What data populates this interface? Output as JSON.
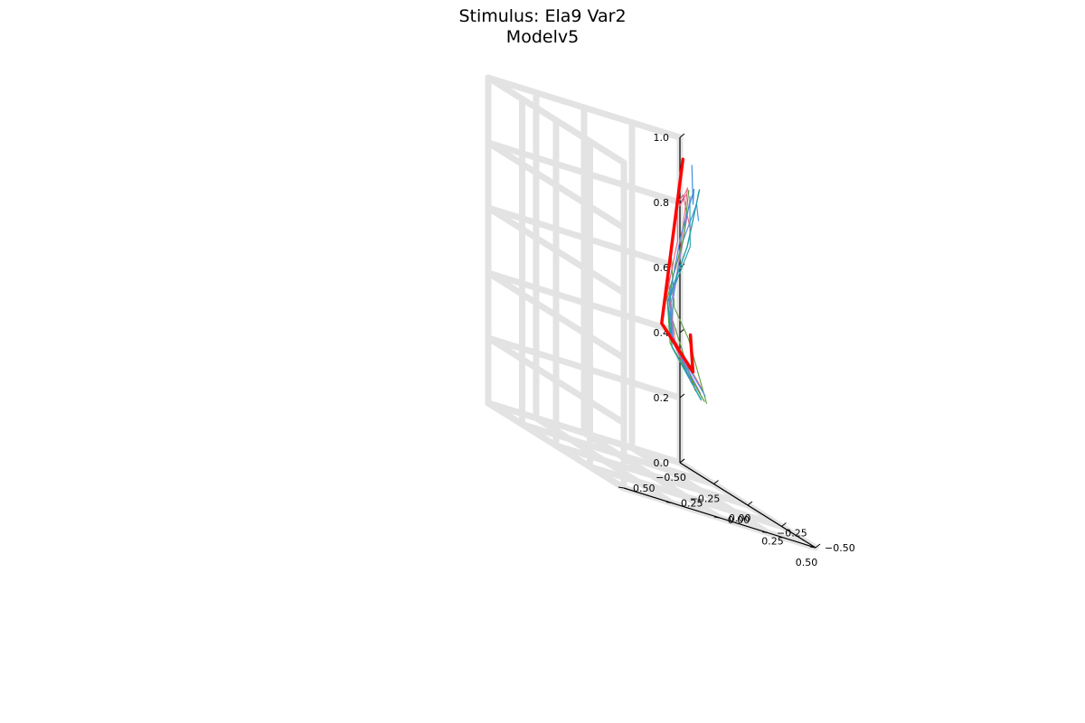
{
  "chart_data": {
    "type": "line3d",
    "title": [
      "Stimulus: Ela9 Var2",
      "Modelv5"
    ],
    "xlim": [
      -0.5,
      0.5
    ],
    "ylim": [
      -0.5,
      0.5
    ],
    "zlim": [
      0.0,
      1.0
    ],
    "x_ticks": [
      -0.5,
      -0.25,
      0.0,
      0.25,
      0.5
    ],
    "y_ticks": [
      -0.5,
      -0.25,
      0.0,
      0.25,
      0.5
    ],
    "z_ticks": [
      0.0,
      0.2,
      0.4,
      0.6,
      0.8,
      1.0
    ],
    "x_tick_labels": [
      "−0.50",
      "−0.25",
      "0.00",
      "0.25",
      "0.50"
    ],
    "y_tick_labels": [
      "−0.50",
      "−0.25",
      "0.00",
      "0.25",
      "0.50"
    ],
    "z_tick_labels": [
      "0.0",
      "0.2",
      "0.4",
      "0.6",
      "0.8",
      "1.0"
    ],
    "grid": true,
    "legend": "none",
    "colors": {
      "target": "#ff0000",
      "blue": "#3f8fdf",
      "teal": "#1f9fa8",
      "green": "#5c9e3c",
      "pink": "#e0607e",
      "purple": "#a07ad0",
      "grid": "#e3e3e3"
    },
    "series": [
      {
        "color": "#ff0000",
        "width": 3.5,
        "points": [
          [
            -0.14,
            -0.3,
            0.45
          ],
          [
            0.02,
            -0.2,
            0.36
          ],
          [
            0.1,
            0.02,
            0.49
          ],
          [
            0.37,
            0.1,
            1.05
          ]
        ]
      },
      {
        "color": "#3f8fdf",
        "width": 1.2,
        "points": [
          [
            -0.02,
            -0.22,
            0.32
          ],
          [
            0.08,
            -0.05,
            0.46
          ],
          [
            0.24,
            0.08,
            0.59
          ],
          [
            0.27,
            0.04,
            0.8
          ],
          [
            0.31,
            0.0,
            0.96
          ],
          [
            0.36,
            0.04,
            0.92
          ],
          [
            0.45,
            0.11,
            1.05
          ]
        ]
      },
      {
        "color": "#1f9fa8",
        "width": 1.4,
        "points": [
          [
            0.01,
            -0.25,
            0.28
          ],
          [
            0.05,
            -0.07,
            0.42
          ],
          [
            0.23,
            0.08,
            0.58
          ],
          [
            0.26,
            0.0,
            0.77
          ],
          [
            0.28,
            -0.05,
            0.96
          ],
          [
            0.34,
            0.0,
            0.95
          ]
        ]
      },
      {
        "color": "#5c9e3c",
        "width": 1.2,
        "points": [
          [
            0.02,
            -0.26,
            0.28
          ],
          [
            0.05,
            -0.06,
            0.43
          ],
          [
            0.24,
            0.09,
            0.59
          ],
          [
            0.26,
            0.02,
            0.79
          ],
          [
            0.3,
            0.02,
            0.95
          ],
          [
            0.37,
            0.07,
            0.96
          ]
        ]
      },
      {
        "color": "#e0607e",
        "width": 1.1,
        "points": [
          [
            0.0,
            -0.23,
            0.3
          ],
          [
            0.07,
            -0.05,
            0.45
          ],
          [
            0.25,
            0.1,
            0.6
          ],
          [
            0.26,
            0.05,
            0.78
          ],
          [
            0.3,
            0.08,
            0.9
          ],
          [
            0.37,
            0.1,
            0.94
          ],
          [
            0.4,
            0.08,
            0.84
          ]
        ]
      },
      {
        "color": "#a07ad0",
        "width": 1.1,
        "points": [
          [
            0.02,
            -0.24,
            0.3
          ],
          [
            0.06,
            -0.07,
            0.44
          ],
          [
            0.24,
            0.07,
            0.58
          ],
          [
            0.27,
            0.03,
            0.78
          ],
          [
            0.31,
            0.02,
            0.93
          ]
        ]
      },
      {
        "color": "#3f8fdf",
        "width": 1.1,
        "points": [
          [
            0.04,
            -0.25,
            0.3
          ],
          [
            0.07,
            -0.05,
            0.45
          ],
          [
            0.24,
            0.06,
            0.59
          ],
          [
            0.28,
            0.04,
            0.78
          ],
          [
            0.33,
            0.0,
            0.92
          ],
          [
            0.4,
            0.04,
            0.88
          ]
        ]
      },
      {
        "color": "#5c9e3c",
        "width": 1.1,
        "points": [
          [
            0.05,
            -0.25,
            0.28
          ],
          [
            0.2,
            -0.05,
            0.48
          ],
          [
            0.25,
            0.06,
            0.57
          ],
          [
            0.28,
            0.1,
            0.76
          ],
          [
            0.34,
            0.1,
            0.94
          ]
        ]
      },
      {
        "color": "#e0607e",
        "width": 1.0,
        "points": [
          [
            0.06,
            -0.22,
            0.32
          ],
          [
            0.1,
            -0.05,
            0.45
          ],
          [
            0.27,
            0.1,
            0.6
          ],
          [
            0.38,
            0.18,
            0.72
          ]
        ]
      },
      {
        "color": "#1f9fa8",
        "width": 1.1,
        "points": [
          [
            0.03,
            -0.24,
            0.29
          ],
          [
            0.07,
            -0.06,
            0.44
          ],
          [
            0.25,
            0.08,
            0.6
          ],
          [
            0.31,
            0.02,
            0.78
          ],
          [
            0.35,
            0.05,
            0.94
          ]
        ]
      },
      {
        "color": "#5c9e3c",
        "width": 1.1,
        "points": [
          [
            -0.02,
            -0.24,
            0.3
          ],
          [
            -0.01,
            -0.1,
            0.52
          ],
          [
            0.05,
            -0.07,
            0.46
          ],
          [
            0.24,
            0.06,
            0.58
          ]
        ]
      },
      {
        "color": "#e0607e",
        "width": 1.0,
        "points": [
          [
            0.27,
            0.05,
            0.72
          ],
          [
            0.32,
            0.04,
            0.96
          ],
          [
            0.37,
            0.12,
            0.9
          ],
          [
            0.42,
            0.12,
            0.95
          ]
        ]
      }
    ]
  }
}
